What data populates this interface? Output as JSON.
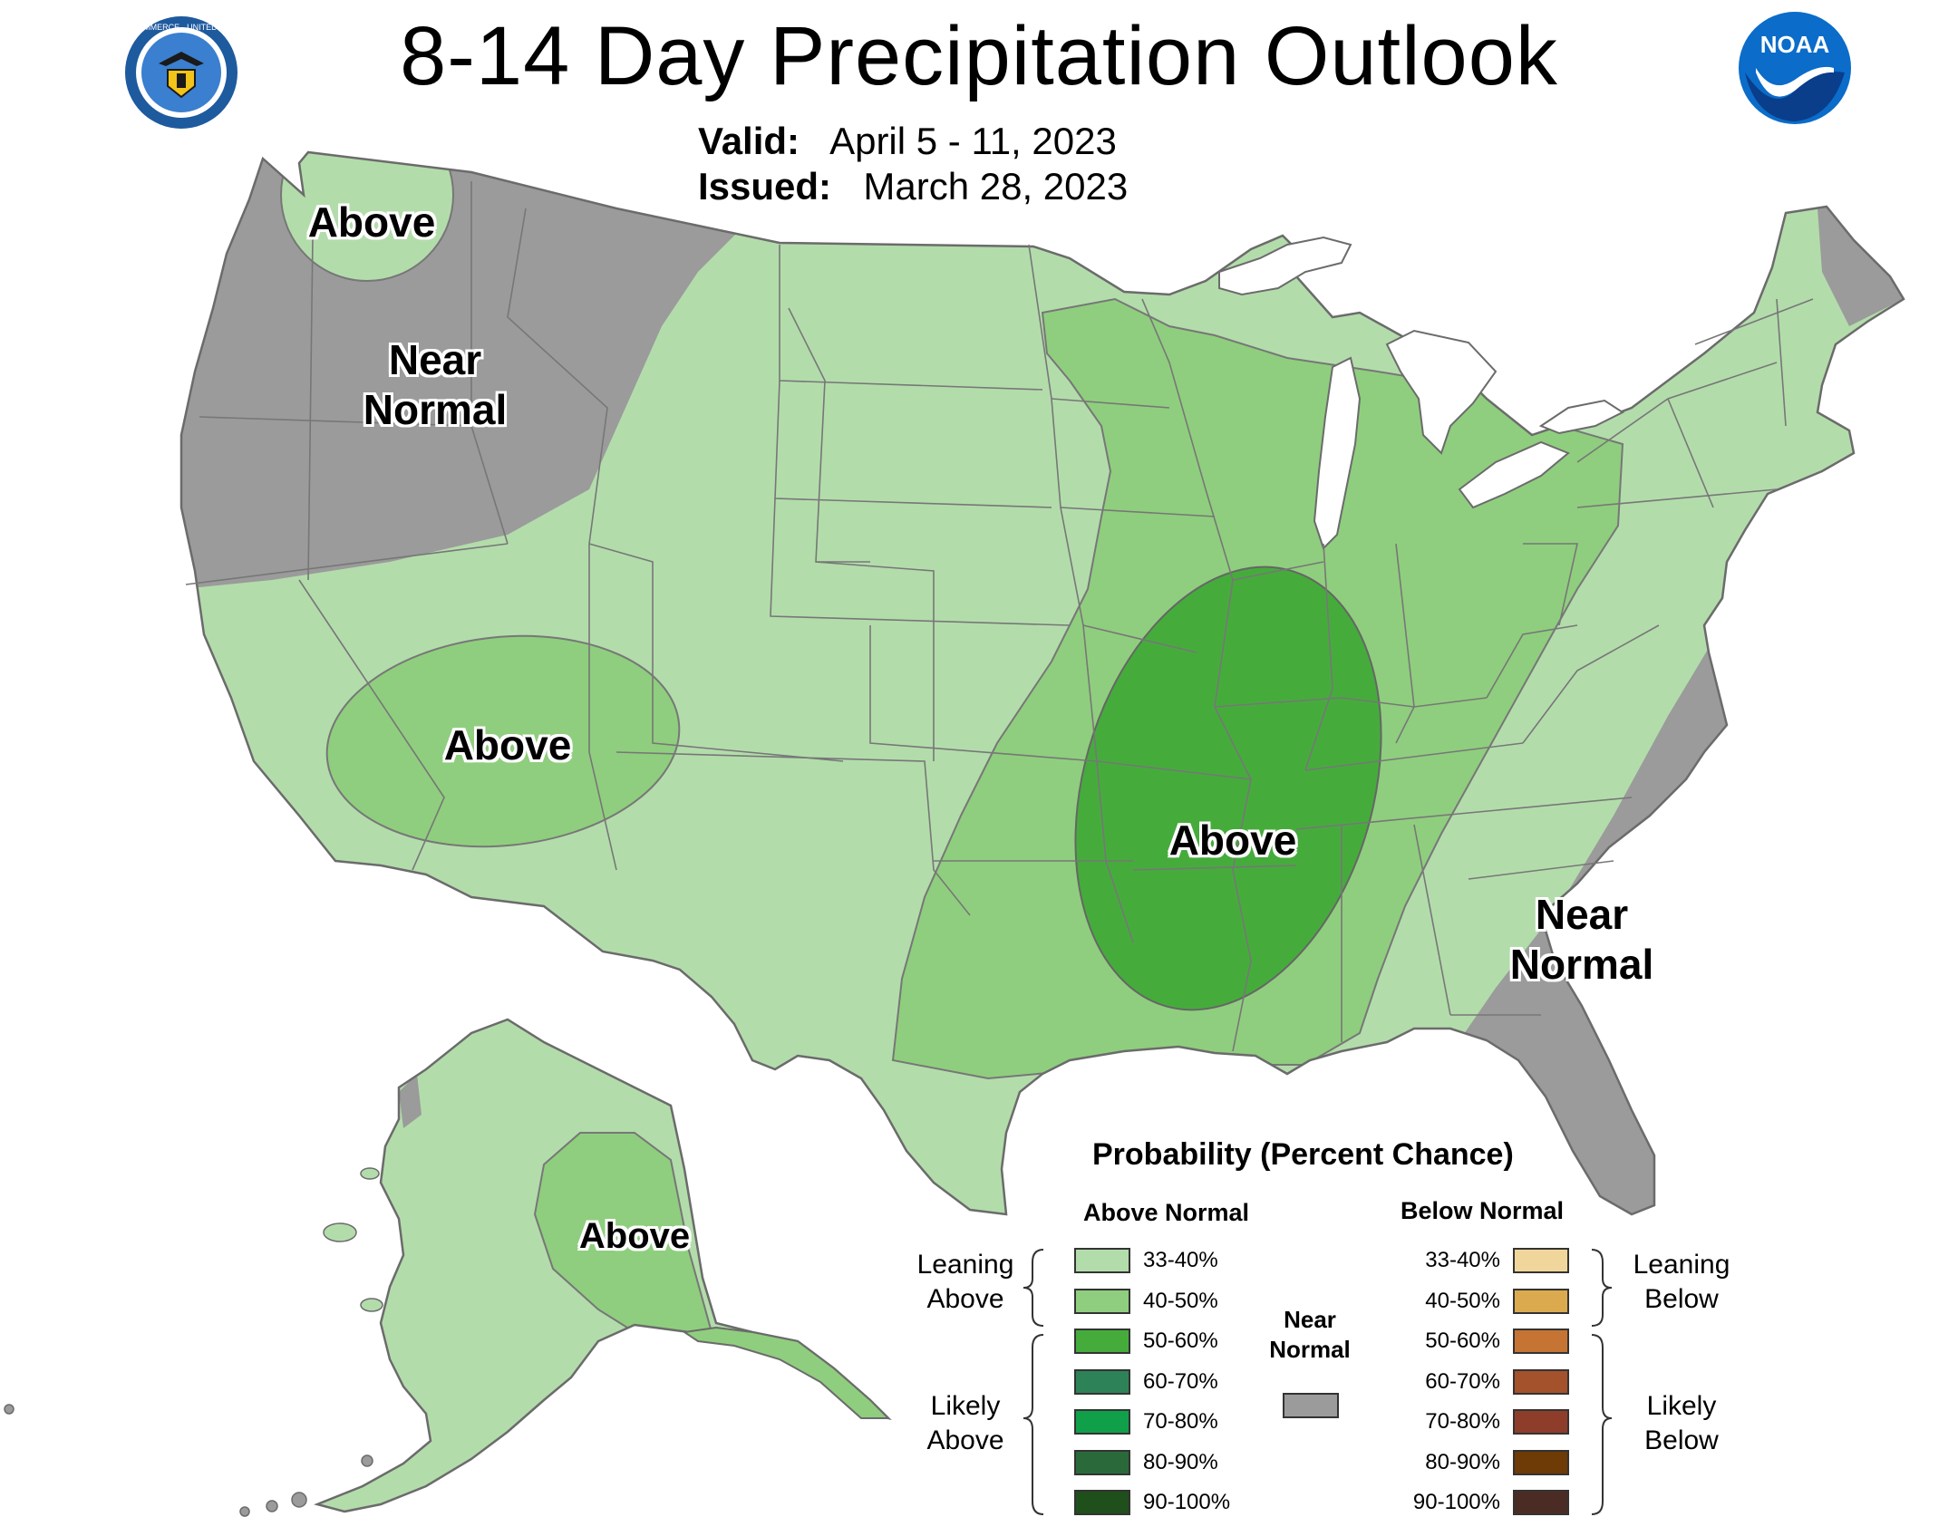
{
  "header": {
    "title": "8-14 Day Precipitation Outlook",
    "valid_label": "Valid:",
    "valid_value": "April 5 - 11, 2023",
    "issued_label": "Issued:",
    "issued_value": "March 28, 2023",
    "left_logo": "department-of-commerce-seal",
    "left_logo_text": "DEPARTMENT OF COMMERCE · UNITED STATES OF AMERICA",
    "right_logo": "noaa-logo",
    "right_logo_text": "NOAA"
  },
  "map": {
    "region_labels": [
      {
        "id": "pacific-nw",
        "text": "Above"
      },
      {
        "id": "northwest",
        "text": "Near Normal"
      },
      {
        "id": "southwest",
        "text": "Above"
      },
      {
        "id": "mid-south",
        "text": "Above"
      },
      {
        "id": "southeast",
        "text": "Near Normal"
      },
      {
        "id": "alaska",
        "text": "Above"
      }
    ],
    "colors": {
      "near_normal": "#9b9b9b",
      "leaning_above_33_40": "#b3dcab",
      "leaning_above_40_50": "#8fce7e",
      "likely_above_50_60": "#45ac3c",
      "border": "#6b6b6b",
      "water": "#ffffff"
    }
  },
  "legend": {
    "title": "Probability (Percent Chance)",
    "above_header": "Above Normal",
    "below_header": "Below Normal",
    "near_normal_label": "Near Normal",
    "near_normal_color": "#9b9b9b",
    "above_groups": [
      {
        "label": "Leaning Above"
      },
      {
        "label": "Likely Above"
      }
    ],
    "below_groups": [
      {
        "label": "Leaning Below"
      },
      {
        "label": "Likely Below"
      }
    ],
    "above_swatches": [
      {
        "label": "33-40%",
        "color": "#b3dcab"
      },
      {
        "label": "40-50%",
        "color": "#8fce7e"
      },
      {
        "label": "50-60%",
        "color": "#45ac3c"
      },
      {
        "label": "60-70%",
        "color": "#2e8258"
      },
      {
        "label": "70-80%",
        "color": "#10a04a"
      },
      {
        "label": "80-90%",
        "color": "#2a6a3a"
      },
      {
        "label": "90-100%",
        "color": "#1f4f1a"
      }
    ],
    "below_swatches": [
      {
        "label": "33-40%",
        "color": "#f0d69a"
      },
      {
        "label": "40-50%",
        "color": "#dcaa4e"
      },
      {
        "label": "50-60%",
        "color": "#c57434"
      },
      {
        "label": "60-70%",
        "color": "#a4522b"
      },
      {
        "label": "70-80%",
        "color": "#8f3d2b"
      },
      {
        "label": "80-90%",
        "color": "#6e3a06"
      },
      {
        "label": "90-100%",
        "color": "#4a2c24"
      }
    ]
  }
}
